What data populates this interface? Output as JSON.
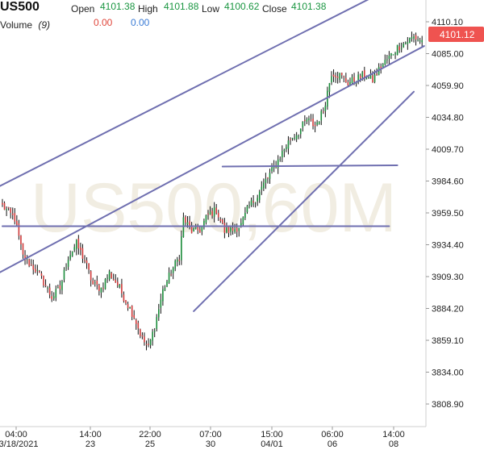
{
  "header": {
    "symbol": "US500",
    "open_label": "Open",
    "open_value": "4101.38",
    "high_label": "High",
    "high_value": "4101.88",
    "low_label": "Low",
    "low_value": "4100.62",
    "close_label": "Close",
    "close_value": "4101.38",
    "volume_label": "Volume",
    "volume_period": "(9)",
    "volume_value_1": "0.00",
    "volume_value_2": "0.00"
  },
  "watermark": "US500,60M",
  "colors": {
    "bullish": "#1a8c3a",
    "bearish": "#d03a3a",
    "wick": "#111111",
    "trendline": "#6f6fb0",
    "price_badge": "#ef5350",
    "label_green": "#1a9641",
    "label_red": "#e0463b",
    "label_blue": "#3a7bd5"
  },
  "chart_data": {
    "type": "candlestick",
    "symbol": "US500",
    "timeframe": "60M",
    "y_axis": {
      "ticks": [
        "4110.10",
        "4085.00",
        "4059.90",
        "4034.80",
        "4009.70",
        "3984.60",
        "3959.50",
        "3934.40",
        "3909.30",
        "3884.20",
        "3859.10",
        "3834.00",
        "3808.90"
      ],
      "range": [
        3800.0,
        4122.0
      ]
    },
    "x_axis": {
      "ticks": [
        {
          "time": "04:00",
          "date": "03/18/2021"
        },
        {
          "time": "14:00",
          "date": "23"
        },
        {
          "time": "22:00",
          "date": "25"
        },
        {
          "time": "07:00",
          "date": "30"
        },
        {
          "time": "15:00",
          "date": "04/01"
        },
        {
          "time": "06:00",
          "date": "06"
        },
        {
          "time": "14:00",
          "date": "08"
        }
      ]
    },
    "last_price": "4101.12",
    "grid": false,
    "anchors": [
      {
        "i": 0,
        "p": 3965
      },
      {
        "i": 6,
        "p": 3955
      },
      {
        "i": 10,
        "p": 3925
      },
      {
        "i": 16,
        "p": 3915
      },
      {
        "i": 20,
        "p": 3905
      },
      {
        "i": 24,
        "p": 3893
      },
      {
        "i": 28,
        "p": 3900
      },
      {
        "i": 32,
        "p": 3925
      },
      {
        "i": 36,
        "p": 3935
      },
      {
        "i": 40,
        "p": 3922
      },
      {
        "i": 44,
        "p": 3903
      },
      {
        "i": 48,
        "p": 3900
      },
      {
        "i": 52,
        "p": 3912
      },
      {
        "i": 56,
        "p": 3903
      },
      {
        "i": 60,
        "p": 3890
      },
      {
        "i": 64,
        "p": 3878
      },
      {
        "i": 68,
        "p": 3860
      },
      {
        "i": 71,
        "p": 3853
      },
      {
        "i": 74,
        "p": 3870
      },
      {
        "i": 78,
        "p": 3898
      },
      {
        "i": 82,
        "p": 3913
      },
      {
        "i": 86,
        "p": 3925
      },
      {
        "i": 88,
        "p": 3955
      },
      {
        "i": 92,
        "p": 3945
      },
      {
        "i": 96,
        "p": 3946
      },
      {
        "i": 100,
        "p": 3958
      },
      {
        "i": 104,
        "p": 3962
      },
      {
        "i": 108,
        "p": 3945
      },
      {
        "i": 112,
        "p": 3946
      },
      {
        "i": 116,
        "p": 3950
      },
      {
        "i": 120,
        "p": 3965
      },
      {
        "i": 124,
        "p": 3973
      },
      {
        "i": 128,
        "p": 3985
      },
      {
        "i": 132,
        "p": 3995
      },
      {
        "i": 136,
        "p": 4007
      },
      {
        "i": 140,
        "p": 4018
      },
      {
        "i": 144,
        "p": 4023
      },
      {
        "i": 148,
        "p": 4033
      },
      {
        "i": 152,
        "p": 4028
      },
      {
        "i": 156,
        "p": 4040
      },
      {
        "i": 160,
        "p": 4070
      },
      {
        "i": 164,
        "p": 4068
      },
      {
        "i": 168,
        "p": 4062
      },
      {
        "i": 172,
        "p": 4065
      },
      {
        "i": 176,
        "p": 4068
      },
      {
        "i": 180,
        "p": 4064
      },
      {
        "i": 184,
        "p": 4075
      },
      {
        "i": 188,
        "p": 4082
      },
      {
        "i": 192,
        "p": 4090
      },
      {
        "i": 196,
        "p": 4094
      },
      {
        "i": 200,
        "p": 4098
      },
      {
        "i": 204,
        "p": 4095
      },
      {
        "i": 206,
        "p": 4101
      }
    ],
    "drawings": [
      {
        "type": "trendline",
        "from": {
          "bar": -2,
          "price": 3980
        },
        "to": {
          "bar": 205,
          "price": 4150
        }
      },
      {
        "type": "trendline",
        "from": {
          "bar": -2,
          "price": 3912
        },
        "to": {
          "bar": 205,
          "price": 4091
        }
      },
      {
        "type": "trendline",
        "from": {
          "bar": 93,
          "price": 3882
        },
        "to": {
          "bar": 200,
          "price": 4055
        }
      },
      {
        "type": "horizontal",
        "from": {
          "bar": 107,
          "price": 3996
        },
        "to": {
          "bar": 192,
          "price": 3997
        }
      },
      {
        "type": "horizontal",
        "from": {
          "bar": 0,
          "price": 3949
        },
        "to": {
          "bar": 188,
          "price": 3949
        }
      }
    ]
  }
}
